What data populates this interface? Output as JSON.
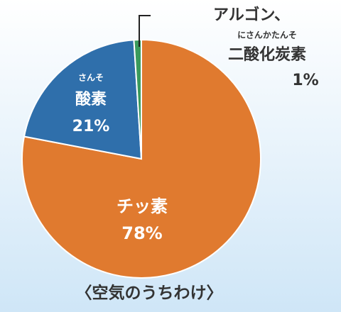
{
  "chart_data": {
    "type": "pie",
    "title": "〈空気のうちわけ〉",
    "categories": [
      "チッ素",
      "酸素",
      [
        "アルゴン、",
        "二酸化炭素"
      ]
    ],
    "readings": [
      null,
      "さんそ",
      "にさんかたんそ"
    ],
    "values": [
      78,
      21,
      1
    ],
    "value_labels": [
      "78%",
      "21%",
      "1%"
    ],
    "colors": [
      "#e07a2f",
      "#2f6fab",
      "#3a9a5c"
    ]
  }
}
